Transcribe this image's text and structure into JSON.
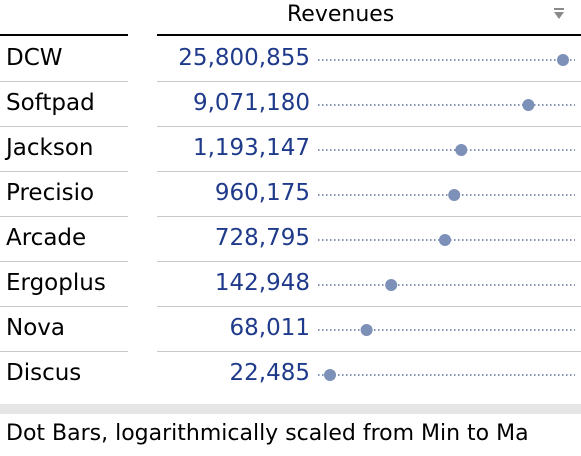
{
  "header": {
    "title": "Revenues",
    "menu_icon": "triangle-down-icon"
  },
  "footer": {
    "note": "Dot Bars, logarithmically scaled from Min to Ma"
  },
  "colors": {
    "value_text": "#1f3a8a",
    "dot": "#7d90b8",
    "leader": "#5a6f9a"
  },
  "chart_data": {
    "type": "scatter",
    "scale": "log",
    "range": "min-to-max",
    "categories": [
      "DCW",
      "Softpad",
      "Jackson",
      "Precisio",
      "Arcade",
      "Ergoplus",
      "Nova",
      "Discus"
    ],
    "labels": [
      "25,800,855",
      "9,071,180",
      "1,193,147",
      "960,175",
      "728,795",
      "142,948",
      "68,011",
      "22,485"
    ],
    "values": [
      25800855,
      9071180,
      1193147,
      960175,
      728795,
      142948,
      68011,
      22485
    ],
    "title": "Revenues"
  }
}
